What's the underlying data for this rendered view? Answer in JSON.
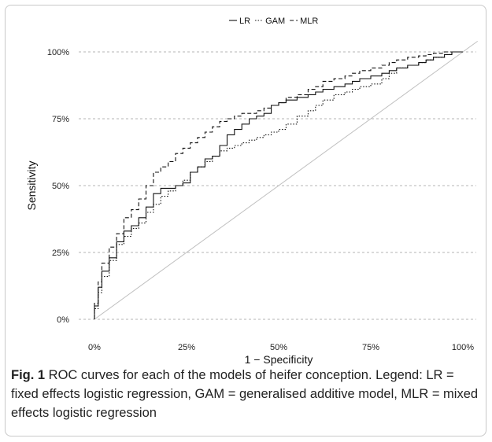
{
  "chart_data": {
    "type": "line",
    "title": "",
    "xlabel": "1 − Specificity",
    "ylabel": "Sensitivity",
    "xlim": [
      0,
      1
    ],
    "ylim": [
      0,
      1
    ],
    "x_ticks": [
      {
        "value": 0,
        "label": "0%"
      },
      {
        "value": 0.25,
        "label": "25%"
      },
      {
        "value": 0.5,
        "label": "50%"
      },
      {
        "value": 0.75,
        "label": "75%"
      },
      {
        "value": 1,
        "label": "100%"
      }
    ],
    "y_ticks": [
      {
        "value": 0,
        "label": "0%"
      },
      {
        "value": 0.25,
        "label": "25%"
      },
      {
        "value": 0.5,
        "label": "50%"
      },
      {
        "value": 0.75,
        "label": "75%"
      },
      {
        "value": 1,
        "label": "100%"
      }
    ],
    "grid": "horizontal dashed",
    "legend_position": "top",
    "reference_line": {
      "x": [
        0,
        1
      ],
      "y": [
        0,
        1
      ],
      "color": "#c0c0c0"
    },
    "series": [
      {
        "name": "LR",
        "dash": "solid",
        "color": "#111111",
        "x": [
          0,
          0.01,
          0.02,
          0.04,
          0.06,
          0.08,
          0.1,
          0.12,
          0.14,
          0.16,
          0.18,
          0.2,
          0.22,
          0.24,
          0.26,
          0.28,
          0.3,
          0.32,
          0.34,
          0.36,
          0.38,
          0.4,
          0.42,
          0.44,
          0.46,
          0.48,
          0.5,
          0.52,
          0.55,
          0.58,
          0.6,
          0.62,
          0.65,
          0.68,
          0.7,
          0.72,
          0.75,
          0.78,
          0.8,
          0.82,
          0.85,
          0.88,
          0.9,
          0.92,
          0.95,
          0.97,
          1
        ],
        "y": [
          0,
          0.05,
          0.12,
          0.18,
          0.23,
          0.29,
          0.33,
          0.35,
          0.38,
          0.42,
          0.47,
          0.49,
          0.49,
          0.5,
          0.51,
          0.55,
          0.57,
          0.6,
          0.61,
          0.65,
          0.69,
          0.71,
          0.73,
          0.75,
          0.76,
          0.77,
          0.8,
          0.81,
          0.82,
          0.83,
          0.84,
          0.85,
          0.86,
          0.87,
          0.88,
          0.89,
          0.9,
          0.91,
          0.92,
          0.93,
          0.94,
          0.95,
          0.96,
          0.97,
          0.98,
          0.99,
          1
        ]
      },
      {
        "name": "GAM",
        "dash": "dotted",
        "color": "#111111",
        "x": [
          0,
          0.01,
          0.02,
          0.04,
          0.06,
          0.08,
          0.1,
          0.12,
          0.14,
          0.16,
          0.18,
          0.2,
          0.22,
          0.24,
          0.26,
          0.28,
          0.3,
          0.32,
          0.34,
          0.36,
          0.38,
          0.4,
          0.42,
          0.44,
          0.46,
          0.48,
          0.5,
          0.52,
          0.55,
          0.58,
          0.6,
          0.62,
          0.65,
          0.68,
          0.7,
          0.72,
          0.75,
          0.78,
          0.8,
          0.82,
          0.85,
          0.88,
          0.9,
          0.92,
          0.95,
          0.97,
          1
        ],
        "y": [
          0,
          0.04,
          0.1,
          0.16,
          0.22,
          0.28,
          0.31,
          0.34,
          0.36,
          0.4,
          0.43,
          0.46,
          0.48,
          0.5,
          0.52,
          0.55,
          0.57,
          0.59,
          0.61,
          0.63,
          0.64,
          0.65,
          0.66,
          0.67,
          0.68,
          0.69,
          0.7,
          0.71,
          0.73,
          0.76,
          0.78,
          0.8,
          0.82,
          0.84,
          0.85,
          0.86,
          0.87,
          0.88,
          0.9,
          0.92,
          0.94,
          0.95,
          0.96,
          0.97,
          0.98,
          0.99,
          1
        ]
      },
      {
        "name": "MLR",
        "dash": "dashed",
        "color": "#111111",
        "x": [
          0,
          0.01,
          0.02,
          0.04,
          0.06,
          0.08,
          0.1,
          0.12,
          0.14,
          0.16,
          0.18,
          0.2,
          0.22,
          0.24,
          0.26,
          0.28,
          0.3,
          0.32,
          0.34,
          0.36,
          0.38,
          0.4,
          0.42,
          0.44,
          0.46,
          0.48,
          0.5,
          0.52,
          0.55,
          0.58,
          0.6,
          0.62,
          0.65,
          0.68,
          0.7,
          0.72,
          0.75,
          0.78,
          0.8,
          0.82,
          0.85,
          0.88,
          0.9,
          0.92,
          0.95,
          0.97,
          1
        ],
        "y": [
          0,
          0.06,
          0.14,
          0.21,
          0.27,
          0.32,
          0.38,
          0.41,
          0.45,
          0.5,
          0.55,
          0.57,
          0.59,
          0.62,
          0.64,
          0.66,
          0.68,
          0.7,
          0.72,
          0.74,
          0.75,
          0.76,
          0.77,
          0.77,
          0.78,
          0.79,
          0.8,
          0.81,
          0.83,
          0.84,
          0.86,
          0.87,
          0.89,
          0.9,
          0.91,
          0.92,
          0.93,
          0.94,
          0.95,
          0.96,
          0.97,
          0.98,
          0.985,
          0.99,
          0.995,
          1,
          1
        ]
      }
    ]
  },
  "caption": {
    "label": "Fig. 1",
    "text": " ROC curves for each of the models of heifer conception. Legend: LR = fixed effects logistic regression, GAM = generalised additive model, MLR = mixed effects logistic regression"
  }
}
